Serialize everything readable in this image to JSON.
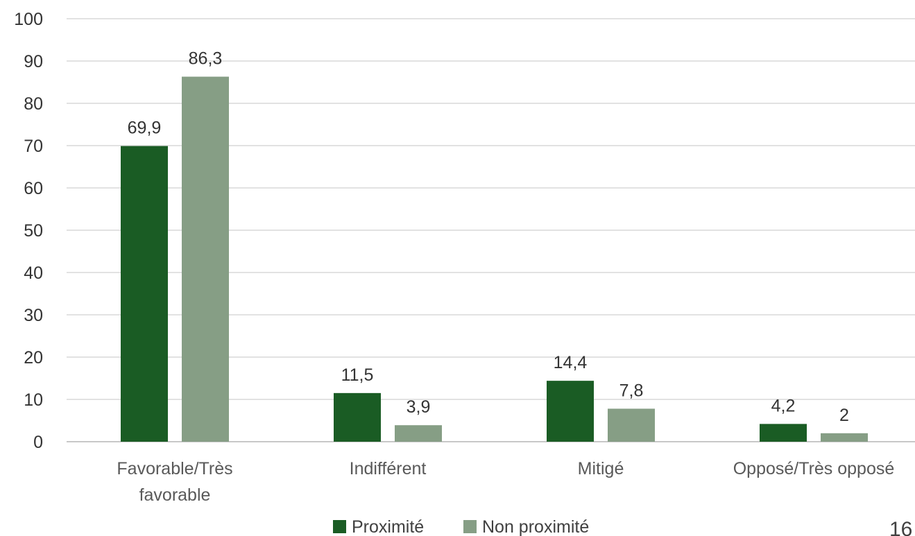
{
  "chart_data": {
    "type": "bar",
    "categories": [
      "Favorable/Très favorable",
      "Indifférent",
      "Mitigé",
      "Opposé/Très opposé"
    ],
    "category_lines": [
      [
        "Favorable/Très",
        "favorable"
      ],
      [
        "Indifférent"
      ],
      [
        "Mitigé"
      ],
      [
        "Opposé/Très opposé"
      ]
    ],
    "series": [
      {
        "name": "Proximité",
        "values": [
          69.9,
          11.5,
          14.4,
          4.2
        ],
        "labels": [
          "69,9",
          "11,5",
          "14,4",
          "4,2"
        ],
        "color": "#1a5c24"
      },
      {
        "name": "Non proximité",
        "values": [
          86.3,
          3.9,
          7.8,
          2
        ],
        "labels": [
          "86,3",
          "3,9",
          "7,8",
          "2"
        ],
        "color": "#869e85"
      }
    ],
    "ylim": [
      0,
      100
    ],
    "yticks": [
      "0",
      "10",
      "20",
      "30",
      "40",
      "50",
      "60",
      "70",
      "80",
      "90",
      "100"
    ],
    "grid": true,
    "legend_position": "bottom",
    "page_number": "16"
  }
}
